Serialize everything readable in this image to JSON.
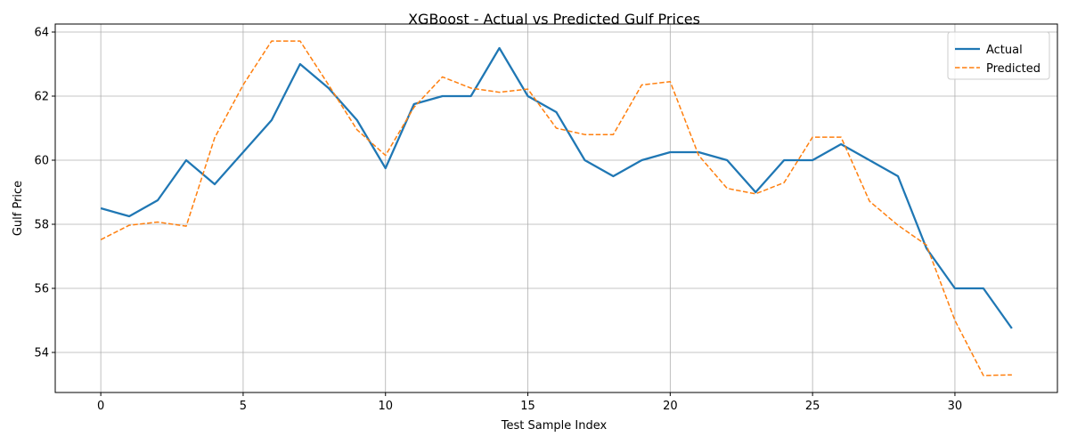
{
  "chart_data": {
    "type": "line",
    "title": "XGBoost - Actual vs Predicted Gulf Prices",
    "xlabel": "Test Sample Index",
    "ylabel": "Gulf Price",
    "xlim": [
      -1.6,
      33.6
    ],
    "ylim": [
      52.75,
      64.25
    ],
    "xticks": [
      0,
      5,
      10,
      15,
      20,
      25,
      30
    ],
    "yticks": [
      54,
      56,
      58,
      60,
      62,
      64
    ],
    "grid": true,
    "legend_position": "top-right",
    "x": [
      0,
      1,
      2,
      3,
      4,
      5,
      6,
      7,
      8,
      9,
      10,
      11,
      12,
      13,
      14,
      15,
      16,
      17,
      18,
      19,
      20,
      21,
      22,
      23,
      24,
      25,
      26,
      27,
      28,
      29,
      30,
      31,
      32
    ],
    "series": [
      {
        "name": "Actual",
        "color": "#1f77b4",
        "style": "solid",
        "values": [
          58.5,
          58.25,
          58.75,
          60.0,
          59.25,
          60.25,
          61.25,
          63.0,
          62.25,
          61.25,
          59.75,
          61.75,
          62.0,
          62.0,
          63.5,
          62.0,
          61.5,
          60.0,
          59.5,
          60.0,
          60.25,
          60.25,
          60.0,
          59.0,
          60.0,
          60.0,
          60.5,
          60.0,
          59.5,
          57.25,
          56.0,
          56.0,
          54.75
        ]
      },
      {
        "name": "Predicted",
        "color": "#ff7f0e",
        "style": "dashed",
        "values": [
          57.52,
          57.97,
          58.07,
          57.94,
          60.7,
          62.35,
          63.72,
          63.72,
          62.35,
          60.95,
          60.15,
          61.65,
          62.6,
          62.25,
          62.12,
          62.22,
          61.0,
          60.8,
          60.8,
          62.35,
          62.45,
          60.15,
          59.12,
          58.95,
          59.3,
          60.72,
          60.72,
          58.72,
          57.97,
          57.35,
          55.0,
          53.28,
          53.3
        ]
      }
    ]
  }
}
